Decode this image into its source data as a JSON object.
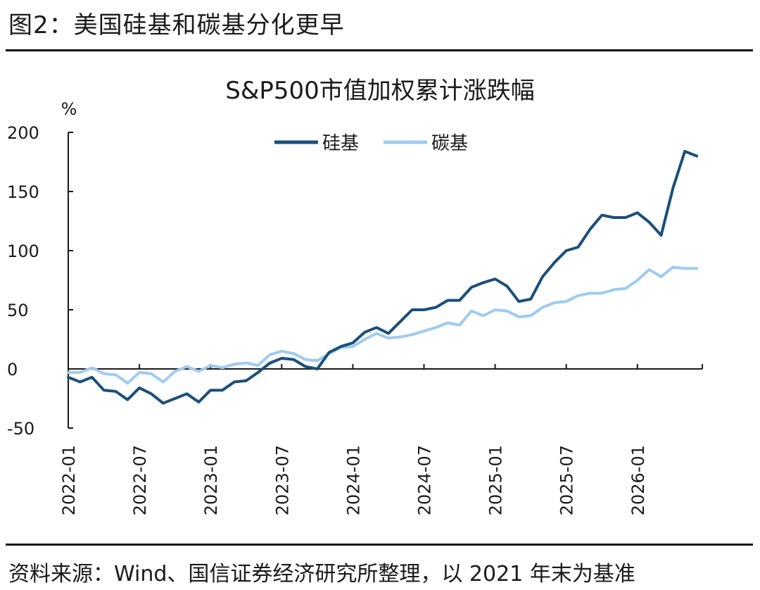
{
  "figure": {
    "title": "图2：美国硅基和碳基分化更早",
    "source": "资料来源：Wind、国信证券经济研究所整理，以 2021 年末为基准"
  },
  "chart_data": {
    "type": "line",
    "title": "S&P500市值加权累计涨跌幅",
    "y_unit": "%",
    "ylim": [
      -50,
      200
    ],
    "y_ticks": [
      -50,
      0,
      50,
      100,
      150,
      200
    ],
    "x_ticks": [
      "2022-01",
      "2022-07",
      "2023-01",
      "2023-07",
      "2024-01",
      "2024-07",
      "2025-01",
      "2025-07",
      "2026-01"
    ],
    "x": [
      "2022-01",
      "2022-02",
      "2022-03",
      "2022-04",
      "2022-05",
      "2022-06",
      "2022-07",
      "2022-08",
      "2022-09",
      "2022-10",
      "2022-11",
      "2022-12",
      "2023-01",
      "2023-02",
      "2023-03",
      "2023-04",
      "2023-05",
      "2023-06",
      "2023-07",
      "2023-08",
      "2023-09",
      "2023-10",
      "2023-11",
      "2023-12",
      "2024-01",
      "2024-02",
      "2024-03",
      "2024-04",
      "2024-05",
      "2024-06",
      "2024-07",
      "2024-08",
      "2024-09",
      "2024-10",
      "2024-11",
      "2024-12",
      "2025-01",
      "2025-02",
      "2025-03",
      "2025-04",
      "2025-05",
      "2025-06",
      "2025-07",
      "2025-08",
      "2025-09",
      "2025-10",
      "2025-11",
      "2025-12",
      "2026-01",
      "2026-02",
      "2026-03",
      "2026-04",
      "2026-05",
      "2026-06"
    ],
    "legend_position": "top-right",
    "grid": false,
    "series": [
      {
        "name": "硅基",
        "color": "#1b4f7a",
        "values": [
          -7,
          -11,
          -7,
          -18,
          -19,
          -26,
          -16,
          -21,
          -29,
          -25,
          -21,
          -28,
          -18,
          -18,
          -11,
          -10,
          -3,
          5,
          9,
          8,
          2,
          0,
          14,
          19,
          22,
          31,
          35,
          30,
          40,
          50,
          50,
          52,
          58,
          58,
          69,
          73,
          76,
          70,
          57,
          59,
          78,
          90,
          100,
          103,
          118,
          130,
          128,
          128,
          132,
          124,
          113,
          153,
          184,
          180
        ]
      },
      {
        "name": "碳基",
        "color": "#9fcbf0",
        "values": [
          -3,
          -3,
          1,
          -4,
          -5,
          -12,
          -3,
          -4,
          -11,
          -2,
          2,
          -2,
          3,
          1,
          4,
          5,
          3,
          12,
          15,
          13,
          8,
          7,
          13,
          18,
          19,
          25,
          30,
          26,
          27,
          29,
          32,
          35,
          39,
          37,
          49,
          45,
          50,
          49,
          44,
          45,
          52,
          56,
          57,
          62,
          64,
          64,
          67,
          68,
          75,
          84,
          78,
          86,
          85,
          85
        ]
      }
    ]
  }
}
